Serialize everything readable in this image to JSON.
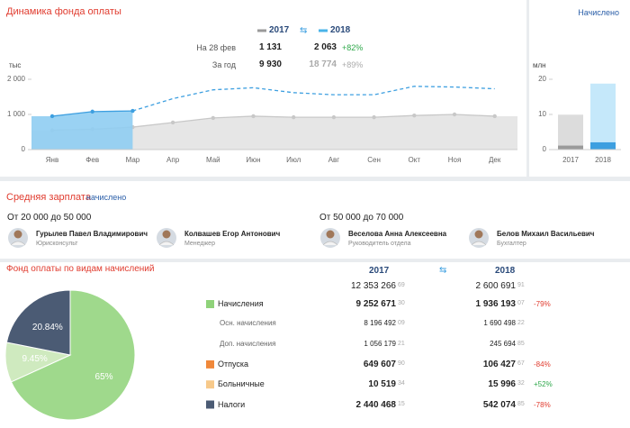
{
  "header": {
    "title": "Динамика фонда оплаты",
    "link": "Начислено"
  },
  "legend": {
    "years": [
      "2017",
      "2018"
    ],
    "colors": [
      "#9a9a9a",
      "#4ab3e8"
    ]
  },
  "comparison": {
    "rows": [
      {
        "label": "На 28 фев",
        "v2017": "1 131",
        "v2018": "2 063",
        "change": "+82%"
      },
      {
        "label": "За год",
        "v2017": "9 930",
        "v2018": "18 774",
        "change": "+89%"
      }
    ]
  },
  "chart_data": [
    {
      "type": "line",
      "y_unit": "тыс",
      "categories": [
        "Янв",
        "Фев",
        "Мар",
        "Апр",
        "Май",
        "Июн",
        "Июл",
        "Авг",
        "Сен",
        "Окт",
        "Ноя",
        "Дек"
      ],
      "series": [
        {
          "name": "2017",
          "color": "#c8c8c8",
          "values": [
            550,
            581,
            640,
            770,
            900,
            950,
            920,
            920,
            920,
            970,
            1000,
            950
          ]
        },
        {
          "name": "2018",
          "color": "#3d9fe0",
          "values": [
            950,
            1080,
            1100,
            null,
            null,
            null,
            null,
            null,
            null,
            null,
            null,
            null
          ]
        },
        {
          "color": "#3d9fe0",
          "dashed": true,
          "values": [
            null,
            null,
            1100,
            1450,
            1700,
            1760,
            1620,
            1560,
            1560,
            1800,
            1780,
            1730
          ]
        }
      ],
      "ylim": [
        0,
        2000
      ],
      "yticks": [
        0,
        {
          "value": 1000,
          "label": "1 000"
        },
        {
          "value": 2000,
          "label": "2 000"
        }
      ]
    },
    {
      "type": "bar",
      "y_unit": "млн",
      "categories": [
        "2017",
        "2018"
      ],
      "series": [
        {
          "colors": [
            "#dcdcdc",
            "#c5e8fa"
          ],
          "values": [
            9.93,
            18.774
          ]
        },
        {
          "colors": [
            "#9a9a9a",
            "#3d9fe0"
          ],
          "values": [
            1.131,
            2.063
          ]
        }
      ],
      "ylim": [
        0,
        20
      ],
      "yticks": [
        0,
        10,
        20
      ]
    },
    {
      "type": "pie",
      "values": [
        65,
        9.45,
        20.84
      ],
      "value_labels": [
        "65%",
        "9.45%",
        "20.84%"
      ],
      "colors": [
        "#9fd98c",
        "#cfeabf",
        "#4b5b74"
      ]
    }
  ],
  "salary": {
    "title": "Средняя зарплата",
    "link": "начислено",
    "groups": [
      {
        "label": "От 20 000 до 50 000",
        "people": [
          {
            "name": "Гурылев Павел Владимирович",
            "role": "Юрисконсульт"
          },
          {
            "name": "Колвашев Егор Антонович",
            "role": "Менеджер"
          }
        ]
      },
      {
        "label": "От 50 000 до 70 000",
        "people": [
          {
            "name": "Веселова Анна Алексеевна",
            "role": "Руководитель отдела"
          },
          {
            "name": "Белов Михаил Васильевич",
            "role": "Бухгалтер"
          }
        ]
      }
    ]
  },
  "fund": {
    "title": "Фонд оплаты по видам начислений",
    "years": [
      "2017",
      "2018"
    ],
    "total": {
      "v2017": [
        "12 353 266",
        "69"
      ],
      "v2018": [
        "2 600 691",
        "91"
      ]
    },
    "rows": [
      {
        "label": "Начисления",
        "color": "#8fd27a",
        "v2017": [
          "9 252 671",
          "30"
        ],
        "v2018": [
          "1 936 193",
          "07"
        ],
        "change": "-79%",
        "change_color": "#e03b2e"
      },
      {
        "label": "Осн. начисления",
        "v2017": [
          "8 196 492",
          "09"
        ],
        "v2018": [
          "1 690 498",
          "22"
        ]
      },
      {
        "label": "Доп. начисления",
        "v2017": [
          "1 056 179",
          "21"
        ],
        "v2018": [
          "245 694",
          "85"
        ]
      },
      {
        "label": "Отпуска",
        "color": "#f0883a",
        "v2017": [
          "649 607",
          "90"
        ],
        "v2018": [
          "106 427",
          "67"
        ],
        "change": "-84%",
        "change_color": "#e03b2e"
      },
      {
        "label": "Больничные",
        "color": "#f7c98a",
        "v2017": [
          "10 519",
          "34"
        ],
        "v2018": [
          "15 996",
          "32"
        ],
        "change": "+52%",
        "change_color": "#2ea84a"
      },
      {
        "label": "Налоги",
        "color": "#4b5b74",
        "v2017": [
          "2 440 468",
          "15"
        ],
        "v2018": [
          "542 074",
          "85"
        ],
        "change": "-78%",
        "change_color": "#e03b2e"
      }
    ]
  }
}
